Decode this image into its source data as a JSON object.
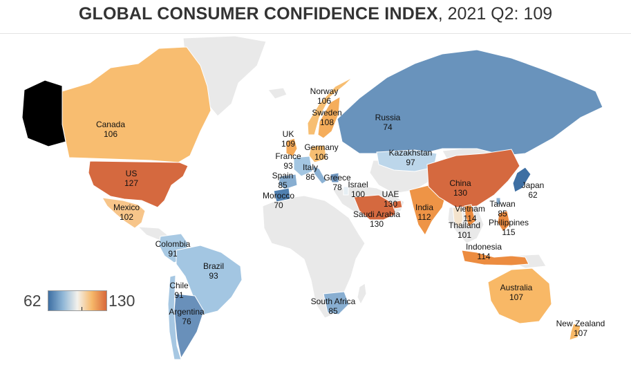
{
  "title": {
    "strong": "GLOBAL CONSUMER CONFIDENCE INDEX",
    "rest": ", 2021 Q2: 109"
  },
  "legend": {
    "min": "62",
    "max": "130",
    "colors": [
      "#3e6fa3",
      "#8fb6d6",
      "#f3f1ec",
      "#f6b86a",
      "#d8683a"
    ]
  },
  "colors": {
    "land": "#e9e9e9",
    "border": "#ffffff"
  },
  "countries": [
    {
      "name": "Canada",
      "value": "106",
      "color": "#f8bd70"
    },
    {
      "name": "US",
      "value": "127",
      "color": "#d5693f"
    },
    {
      "name": "Mexico",
      "value": "102",
      "color": "#f7c58a"
    },
    {
      "name": "Colombia",
      "value": "91",
      "color": "#a8c9e3"
    },
    {
      "name": "Brazil",
      "value": "93",
      "color": "#a3c6e2"
    },
    {
      "name": "Chile",
      "value": "91",
      "color": "#a6c7e2"
    },
    {
      "name": "Argentina",
      "value": "76",
      "color": "#6990ba"
    },
    {
      "name": "Norway",
      "value": "106",
      "color": "#f7be72"
    },
    {
      "name": "Sweden",
      "value": "108",
      "color": "#f5ad5b"
    },
    {
      "name": "UK",
      "value": "109",
      "color": "#f5aa58"
    },
    {
      "name": "Germany",
      "value": "106",
      "color": "#f7be72"
    },
    {
      "name": "France",
      "value": "93",
      "color": "#a3c6e2"
    },
    {
      "name": "Italy",
      "value": "86",
      "color": "#8cb2d4"
    },
    {
      "name": "Spain",
      "value": "85",
      "color": "#88aed1"
    },
    {
      "name": "Greece",
      "value": "78",
      "color": "#6f96bf"
    },
    {
      "name": "Morocco",
      "value": "70",
      "color": "#5080b0"
    },
    {
      "name": "Israel",
      "value": "100",
      "color": "#e6eef3"
    },
    {
      "name": "Russia",
      "value": "74",
      "color": "#6993bc"
    },
    {
      "name": "Kazakhstan",
      "value": "97",
      "color": "#bcd6ea"
    },
    {
      "name": "UAE",
      "value": "130",
      "color": "#d5693f"
    },
    {
      "name": "Saudi Arabia",
      "value": "130",
      "color": "#d5693f"
    },
    {
      "name": "India",
      "value": "112",
      "color": "#ee9446"
    },
    {
      "name": "China",
      "value": "130",
      "color": "#d5693f"
    },
    {
      "name": "Vietnam",
      "value": "114",
      "color": "#ec8c40"
    },
    {
      "name": "Thailand",
      "value": "101",
      "color": "#f4e3cc"
    },
    {
      "name": "Japan",
      "value": "62",
      "color": "#3e6fa3"
    },
    {
      "name": "Taiwan",
      "value": "85",
      "color": "#88aed1"
    },
    {
      "name": "Philippines",
      "value": "115",
      "color": "#ea8a40"
    },
    {
      "name": "Indonesia",
      "value": "114",
      "color": "#ec8c40"
    },
    {
      "name": "Australia",
      "value": "107",
      "color": "#f8b866"
    },
    {
      "name": "New Zealand",
      "value": "107",
      "color": "#f8b866"
    },
    {
      "name": "South Africa",
      "value": "85",
      "color": "#88aed1"
    }
  ]
}
